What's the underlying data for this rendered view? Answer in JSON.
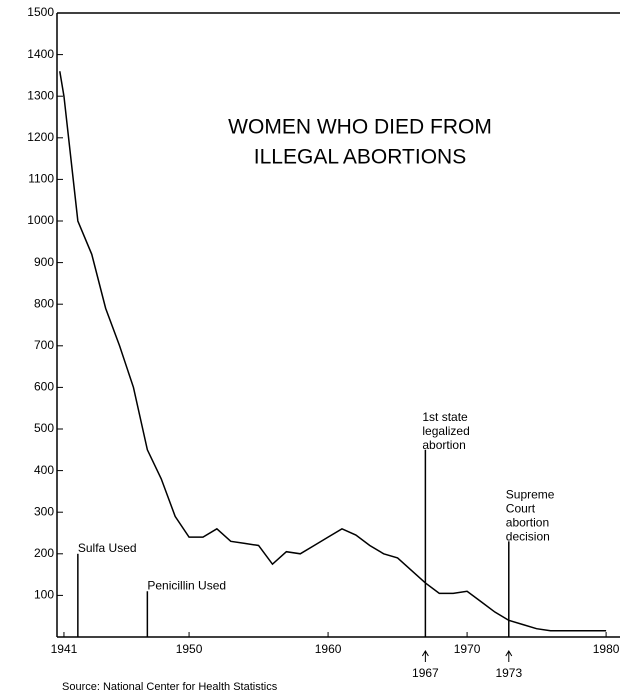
{
  "chart_data": {
    "type": "line",
    "title": [
      "WOMEN WHO DIED FROM",
      "ILLEGAL ABORTIONS"
    ],
    "source": "Source: National Center for Health Statistics",
    "x": [
      1940.7,
      1941,
      1942,
      1943,
      1944,
      1945,
      1946,
      1947,
      1948,
      1949,
      1950,
      1951,
      1952,
      1953,
      1954,
      1955,
      1956,
      1957,
      1958,
      1959,
      1960,
      1961,
      1962,
      1963,
      1964,
      1965,
      1966,
      1967,
      1968,
      1969,
      1970,
      1971,
      1972,
      1973,
      1974,
      1975,
      1976,
      1977,
      1978,
      1979,
      1980
    ],
    "series": [
      {
        "color": "#000000",
        "values": [
          1360,
          1300,
          1000,
          920,
          790,
          700,
          600,
          450,
          380,
          290,
          240,
          240,
          260,
          230,
          225,
          220,
          175,
          205,
          200,
          220,
          240,
          260,
          245,
          220,
          200,
          190,
          160,
          130,
          105,
          105,
          110,
          85,
          60,
          40,
          30,
          20,
          15,
          15,
          15,
          15,
          15
        ]
      }
    ],
    "annotations": [
      {
        "text": [
          "Sulfa Used"
        ],
        "x": 1942,
        "top": 200,
        "marked": false
      },
      {
        "text": [
          "Penicillin Used"
        ],
        "x": 1947,
        "top": 110,
        "marked": false
      },
      {
        "text": [
          "1st state",
          "legalized",
          "abortion"
        ],
        "x": 1967,
        "top": 450,
        "marked": true
      },
      {
        "text": [
          "Supreme",
          "Court",
          "abortion",
          "decision"
        ],
        "x": 1973,
        "top": 230,
        "marked": true
      }
    ],
    "xlim": [
      1940.5,
      1981
    ],
    "xticks": [
      1941,
      1950,
      1960,
      1970,
      1980
    ],
    "ylim": [
      0,
      1500
    ],
    "yticks": [
      100,
      200,
      300,
      400,
      500,
      600,
      700,
      800,
      900,
      1000,
      1100,
      1200,
      1300,
      1400,
      1500
    ]
  }
}
